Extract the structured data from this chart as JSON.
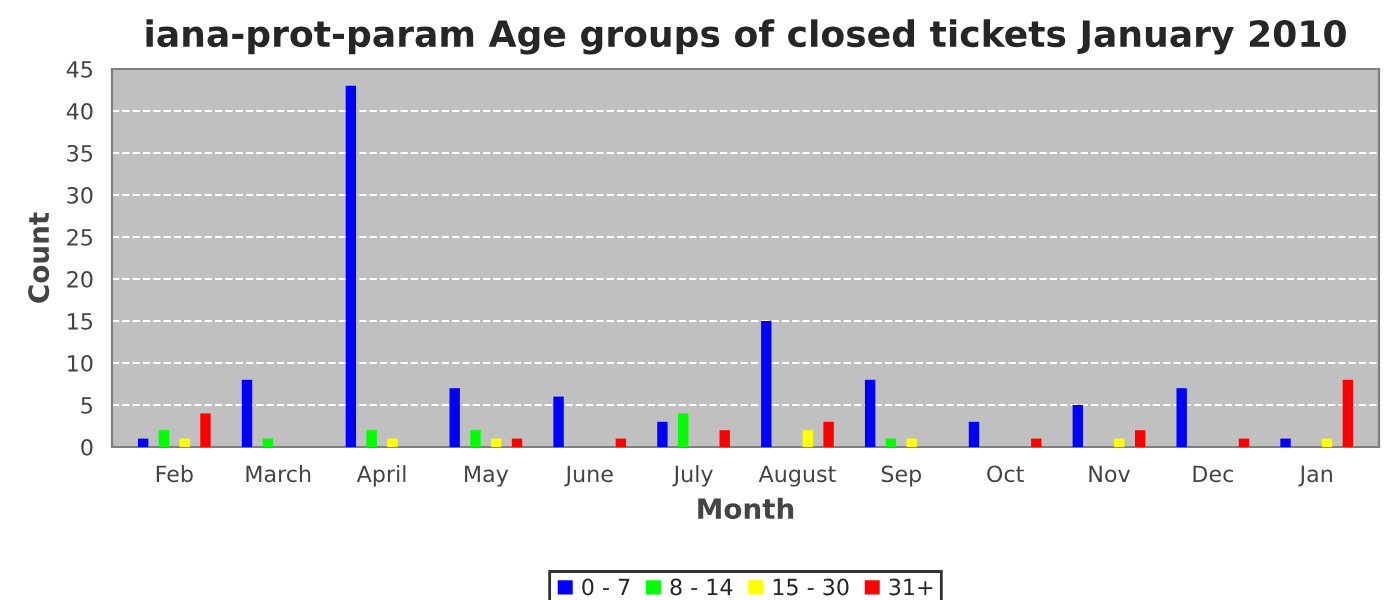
{
  "chart_data": {
    "type": "bar",
    "title": "iana-prot-param Age groups of closed tickets January 2010",
    "xlabel": "Month",
    "ylabel": "Count",
    "categories": [
      "Feb",
      "March",
      "April",
      "May",
      "June",
      "July",
      "August",
      "Sep",
      "Oct",
      "Nov",
      "Dec",
      "Jan"
    ],
    "series": [
      {
        "name": "0 - 7",
        "color": "#0000ff",
        "values": [
          1,
          8,
          43,
          7,
          6,
          3,
          15,
          8,
          3,
          5,
          7,
          1
        ]
      },
      {
        "name": "8 - 14",
        "color": "#00ff00",
        "values": [
          2,
          1,
          2,
          2,
          0,
          4,
          0,
          1,
          0,
          0,
          0,
          0
        ]
      },
      {
        "name": "15 - 30",
        "color": "#ffff00",
        "values": [
          1,
          0,
          1,
          1,
          0,
          0,
          2,
          1,
          0,
          1,
          0,
          1
        ]
      },
      {
        "name": "31+",
        "color": "#ff0000",
        "values": [
          4,
          0,
          0,
          1,
          1,
          2,
          3,
          0,
          1,
          2,
          1,
          8
        ]
      }
    ],
    "ylim": [
      0,
      45
    ],
    "yticks": [
      0,
      5,
      10,
      15,
      20,
      25,
      30,
      35,
      40,
      45
    ],
    "grid": "y",
    "legend": "bottom"
  }
}
